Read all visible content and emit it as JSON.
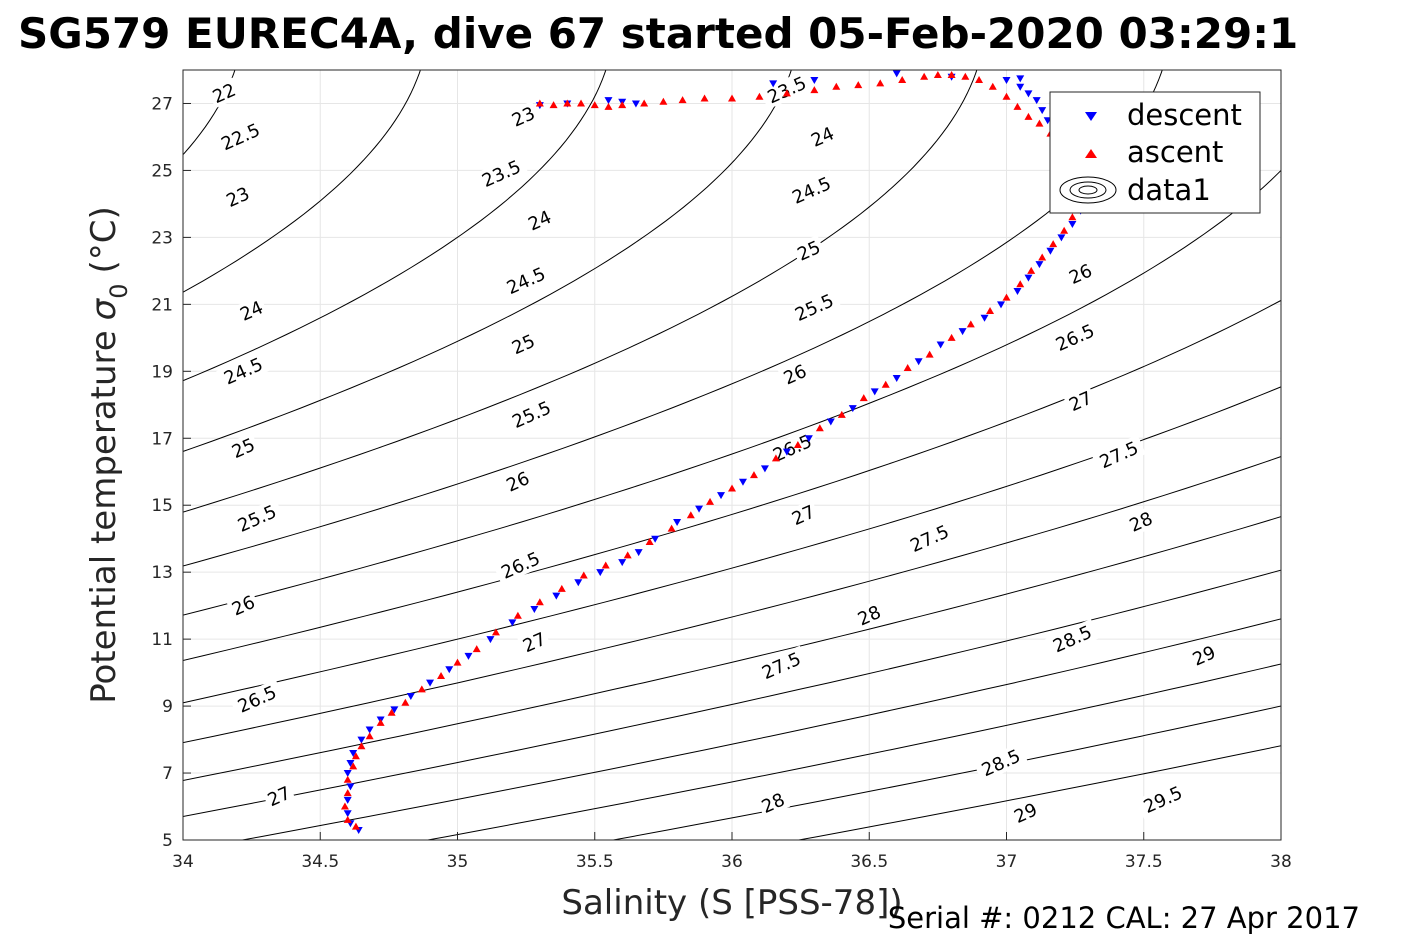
{
  "title": "SG579 EUREC4A, dive 67 started 05-Feb-2020 03:29:1",
  "footer": "Serial #: 0212  CAL: 27 Apr 2017",
  "colors": {
    "descent": "#0000ff",
    "ascent": "#ff0000",
    "contour": "#000000",
    "grid": "#e6e6e6"
  },
  "chart_data": {
    "type": "scatter",
    "title": "SG579 EUREC4A, dive 67 started 05-Feb-2020 03:29:1",
    "xlabel": "Salinity (S [PSS-78])",
    "ylabel": "Potential temperature",
    "ylabel_symbol": "σ",
    "ylabel_subscript": "0",
    "ylabel_unit": "(°C)",
    "xlim": [
      34,
      38
    ],
    "ylim": [
      5,
      28
    ],
    "xticks": [
      "34",
      "34.5",
      "35",
      "35.5",
      "36",
      "36.5",
      "37",
      "37.5",
      "38"
    ],
    "yticks": [
      "5",
      "7",
      "9",
      "11",
      "13",
      "15",
      "17",
      "19",
      "21",
      "23",
      "25",
      "27"
    ],
    "grid": true,
    "legend_position": "top-right",
    "legend": [
      "descent",
      "ascent",
      "data1"
    ],
    "contour_levels": [
      22,
      22.5,
      23,
      23.5,
      24,
      24.5,
      25,
      25.5,
      26,
      26.5,
      27,
      27.5,
      28,
      28.5,
      29,
      29.5,
      30
    ],
    "contour_labels": [
      {
        "text": "22",
        "x": 34.15,
        "y": 27.3
      },
      {
        "text": "22.5",
        "x": 34.21,
        "y": 26.0
      },
      {
        "text": "23",
        "x": 34.2,
        "y": 24.2
      },
      {
        "text": "24",
        "x": 34.25,
        "y": 20.8
      },
      {
        "text": "24.5",
        "x": 34.22,
        "y": 19.0
      },
      {
        "text": "25",
        "x": 34.22,
        "y": 16.7
      },
      {
        "text": "25.5",
        "x": 34.27,
        "y": 14.6
      },
      {
        "text": "26",
        "x": 34.22,
        "y": 12.0
      },
      {
        "text": "26.5",
        "x": 34.27,
        "y": 9.2
      },
      {
        "text": "27",
        "x": 34.35,
        "y": 6.3
      },
      {
        "text": "23",
        "x": 35.24,
        "y": 26.6
      },
      {
        "text": "23.5",
        "x": 35.16,
        "y": 24.9
      },
      {
        "text": "24",
        "x": 35.3,
        "y": 23.5
      },
      {
        "text": "24.5",
        "x": 35.25,
        "y": 21.7
      },
      {
        "text": "25",
        "x": 35.24,
        "y": 19.8
      },
      {
        "text": "25.5",
        "x": 35.27,
        "y": 17.7
      },
      {
        "text": "26",
        "x": 35.22,
        "y": 15.7
      },
      {
        "text": "26.5",
        "x": 35.23,
        "y": 13.2
      },
      {
        "text": "27",
        "x": 35.28,
        "y": 10.9
      },
      {
        "text": "23.5",
        "x": 36.2,
        "y": 27.4
      },
      {
        "text": "24",
        "x": 36.33,
        "y": 26.0
      },
      {
        "text": "24.5",
        "x": 36.29,
        "y": 24.4
      },
      {
        "text": "25",
        "x": 36.28,
        "y": 22.6
      },
      {
        "text": "25.5",
        "x": 36.3,
        "y": 20.9
      },
      {
        "text": "26",
        "x": 36.23,
        "y": 18.9
      },
      {
        "text": "26.5",
        "x": 36.22,
        "y": 16.7
      },
      {
        "text": "27",
        "x": 36.26,
        "y": 14.7
      },
      {
        "text": "27.5",
        "x": 36.18,
        "y": 10.2
      },
      {
        "text": "28",
        "x": 36.15,
        "y": 6.1
      },
      {
        "text": "26",
        "x": 37.27,
        "y": 21.9
      },
      {
        "text": "26.5",
        "x": 37.25,
        "y": 20.0
      },
      {
        "text": "27",
        "x": 37.27,
        "y": 18.1
      },
      {
        "text": "27.5",
        "x": 37.41,
        "y": 16.5
      },
      {
        "text": "28",
        "x": 37.49,
        "y": 14.5
      },
      {
        "text": "27.5",
        "x": 36.72,
        "y": 14.0
      },
      {
        "text": "28",
        "x": 36.5,
        "y": 11.7
      },
      {
        "text": "28.5",
        "x": 37.24,
        "y": 11.0
      },
      {
        "text": "29",
        "x": 37.72,
        "y": 10.5
      },
      {
        "text": "28.5",
        "x": 36.98,
        "y": 7.3
      },
      {
        "text": "29",
        "x": 37.07,
        "y": 5.8
      },
      {
        "text": "29.5",
        "x": 37.57,
        "y": 6.2
      }
    ],
    "series": [
      {
        "name": "descent",
        "marker": "triangle-down",
        "x": [
          34.64,
          34.61,
          34.6,
          34.6,
          34.61,
          34.6,
          34.61,
          34.62,
          34.65,
          34.68,
          34.72,
          34.77,
          34.83,
          34.9,
          34.97,
          35.04,
          35.12,
          35.2,
          35.28,
          35.36,
          35.44,
          35.52,
          35.6,
          35.66,
          35.72,
          35.8,
          35.88,
          35.96,
          36.04,
          36.12,
          36.2,
          36.28,
          36.36,
          36.44,
          36.52,
          36.6,
          36.68,
          36.76,
          36.84,
          36.92,
          36.98,
          37.04,
          37.08,
          37.12,
          37.16,
          37.2,
          37.24,
          37.27,
          37.3,
          37.28,
          37.25,
          37.22,
          37.18,
          37.15,
          37.13,
          37.11,
          37.08,
          37.05,
          37.0,
          36.8,
          36.6,
          35.6,
          35.55,
          35.4,
          35.3,
          35.65,
          36.15,
          36.3,
          37.05
        ],
        "y": [
          5.3,
          5.5,
          5.8,
          6.2,
          6.6,
          7.0,
          7.3,
          7.6,
          8.0,
          8.3,
          8.6,
          8.9,
          9.3,
          9.7,
          10.1,
          10.5,
          11.0,
          11.5,
          11.9,
          12.3,
          12.7,
          13.0,
          13.3,
          13.6,
          14.0,
          14.5,
          14.9,
          15.3,
          15.7,
          16.1,
          16.6,
          17.0,
          17.5,
          17.9,
          18.4,
          18.8,
          19.3,
          19.8,
          20.2,
          20.6,
          21.0,
          21.4,
          21.8,
          22.2,
          22.6,
          23.0,
          23.4,
          23.8,
          24.3,
          24.8,
          25.3,
          25.7,
          26.1,
          26.5,
          26.8,
          27.1,
          27.3,
          27.5,
          27.7,
          27.8,
          27.9,
          27.05,
          27.1,
          27.0,
          26.95,
          27.0,
          27.6,
          27.7,
          27.75
        ]
      },
      {
        "name": "ascent",
        "marker": "triangle-up",
        "x": [
          34.63,
          34.6,
          34.59,
          34.6,
          34.6,
          34.62,
          34.63,
          34.65,
          34.68,
          34.72,
          34.76,
          34.81,
          34.87,
          34.94,
          35.0,
          35.07,
          35.14,
          35.22,
          35.3,
          35.38,
          35.46,
          35.54,
          35.62,
          35.7,
          35.78,
          35.85,
          35.92,
          36.0,
          36.08,
          36.16,
          36.24,
          36.32,
          36.4,
          36.48,
          36.56,
          36.64,
          36.72,
          36.8,
          36.87,
          36.94,
          37.0,
          37.05,
          37.09,
          37.13,
          37.17,
          37.21,
          37.24,
          37.27,
          37.25,
          37.2,
          37.16,
          37.12,
          37.08,
          37.04,
          37.0,
          36.95,
          36.9,
          36.85,
          36.8,
          36.75,
          36.7,
          36.62,
          36.54,
          36.46,
          36.38,
          36.3,
          36.2,
          36.1,
          36.0,
          35.9,
          35.82,
          35.75,
          35.68,
          35.6,
          35.55,
          35.5,
          35.45,
          35.4,
          35.35,
          35.3
        ],
        "y": [
          5.4,
          5.6,
          6.0,
          6.4,
          6.8,
          7.2,
          7.5,
          7.8,
          8.1,
          8.5,
          8.8,
          9.1,
          9.5,
          9.9,
          10.3,
          10.7,
          11.2,
          11.7,
          12.1,
          12.5,
          12.9,
          13.2,
          13.5,
          13.9,
          14.3,
          14.7,
          15.1,
          15.5,
          15.9,
          16.4,
          16.8,
          17.3,
          17.7,
          18.2,
          18.6,
          19.1,
          19.5,
          20.0,
          20.4,
          20.8,
          21.2,
          21.6,
          22.0,
          22.4,
          22.8,
          23.2,
          23.6,
          24.0,
          25.4,
          25.8,
          26.1,
          26.4,
          26.6,
          26.9,
          27.2,
          27.5,
          27.7,
          27.8,
          27.85,
          27.85,
          27.8,
          27.7,
          27.6,
          27.55,
          27.5,
          27.4,
          27.3,
          27.2,
          27.15,
          27.15,
          27.1,
          27.05,
          27.0,
          26.95,
          26.9,
          26.95,
          27.0,
          27.0,
          26.95,
          27.0
        ]
      }
    ]
  }
}
